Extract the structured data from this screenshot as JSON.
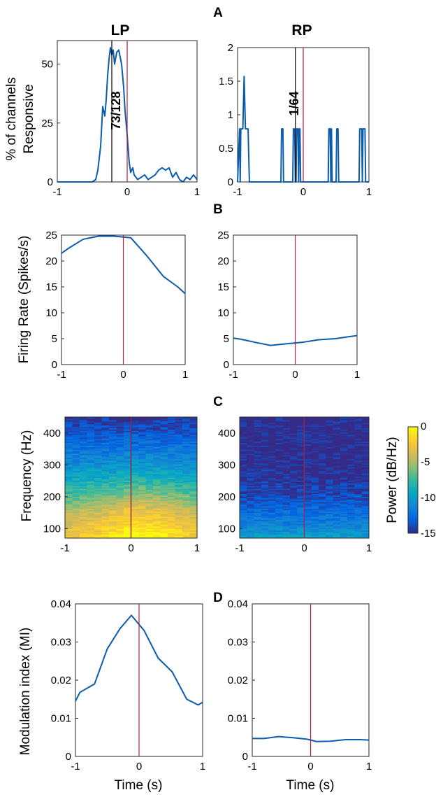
{
  "figure": {
    "column_titles": [
      "LP",
      "RP"
    ],
    "panel_letters": [
      "A",
      "B",
      "C",
      "D"
    ],
    "colorbar": {
      "label": "Power (dB/Hz)",
      "ticks": [
        "0",
        "-5",
        "-10",
        "-15"
      ],
      "range": [
        -15,
        0
      ]
    },
    "colors": {
      "line": "#0b5cad",
      "onset_line": "#b02040",
      "peak_line": "#000000"
    }
  },
  "chart_data": [
    {
      "id": "A-LP",
      "panel": "A",
      "type": "line",
      "ylabel": [
        "% of channels",
        "Responsive"
      ],
      "xlim": [
        -1,
        1
      ],
      "ylim": [
        0,
        60
      ],
      "xticks": [
        "-1",
        "0",
        "1"
      ],
      "yticks": [
        "0",
        "25",
        "50"
      ],
      "markers": {
        "red_x": 0.0,
        "black_x": -0.22
      },
      "annotation": "73/128",
      "x": [
        -1,
        -0.9,
        -0.8,
        -0.7,
        -0.6,
        -0.5,
        -0.45,
        -0.42,
        -0.38,
        -0.35,
        -0.32,
        -0.3,
        -0.28,
        -0.26,
        -0.24,
        -0.22,
        -0.2,
        -0.18,
        -0.15,
        -0.12,
        -0.1,
        -0.08,
        -0.05,
        -0.03,
        0,
        0.03,
        0.05,
        0.08,
        0.1,
        0.15,
        0.2,
        0.25,
        0.3,
        0.35,
        0.4,
        0.45,
        0.5,
        0.55,
        0.6,
        0.65,
        0.7,
        0.75,
        0.8,
        0.85,
        0.9,
        0.95,
        1
      ],
      "y": [
        0,
        0,
        0,
        0,
        0,
        0,
        1,
        5,
        15,
        32,
        28,
        35,
        45,
        52,
        57,
        54,
        56,
        50,
        55,
        56,
        53,
        50,
        40,
        30,
        20,
        8,
        4,
        6,
        3,
        1,
        2,
        3,
        1,
        2,
        3,
        5,
        6,
        5,
        6,
        2,
        4,
        1,
        0,
        2,
        1,
        3,
        1
      ]
    },
    {
      "id": "A-RP",
      "panel": "A",
      "type": "line",
      "xlim": [
        -1,
        1
      ],
      "ylim": [
        0,
        2
      ],
      "xticks": [
        "-1",
        "0",
        "1"
      ],
      "yticks": [
        "0",
        "0.5",
        "1",
        "1.5",
        "2"
      ],
      "markers": {
        "red_x": 0.0,
        "black_x": -0.12
      },
      "annotation": "1/64",
      "x": [
        -1,
        -0.97,
        -0.96,
        -0.95,
        -0.94,
        -0.92,
        -0.9,
        -0.88,
        -0.86,
        -0.84,
        -0.82,
        -0.8,
        -0.78,
        -0.34,
        -0.33,
        -0.32,
        -0.31,
        -0.3,
        -0.16,
        -0.15,
        -0.14,
        -0.13,
        -0.12,
        -0.11,
        -0.1,
        -0.09,
        -0.08,
        -0.07,
        -0.06,
        -0.05,
        -0.04,
        0.38,
        0.39,
        0.4,
        0.41,
        0.42,
        0.43,
        0.44,
        0.5,
        0.51,
        0.52,
        0.53,
        0.54,
        0.85,
        0.86,
        0.87,
        0.88,
        0.89,
        0.9,
        0.91,
        0.92,
        0.93,
        0.94,
        0.95,
        1
      ],
      "y": [
        0,
        0.79,
        0,
        0.79,
        0.79,
        0.79,
        1.57,
        0.79,
        0.79,
        0.79,
        0,
        0,
        0,
        0,
        0.79,
        0.79,
        0.79,
        0,
        0,
        0.79,
        0.79,
        0.79,
        0,
        0,
        0.79,
        0.79,
        0.79,
        0,
        0.79,
        0.79,
        0,
        0,
        0.79,
        0.79,
        0.79,
        0,
        0.79,
        0,
        0,
        0.79,
        0.79,
        0.79,
        0,
        0,
        0.79,
        0.79,
        0.79,
        0.79,
        0,
        0.79,
        0.79,
        0.79,
        0.79,
        0,
        0
      ]
    },
    {
      "id": "B-LP",
      "panel": "B",
      "type": "line",
      "ylabel": [
        "Firing Rate  (Spikes/s)"
      ],
      "xlim": [
        -1,
        1
      ],
      "ylim": [
        0,
        25
      ],
      "xticks": [
        "-1",
        "0",
        "1"
      ],
      "yticks": [
        "0",
        "5",
        "10",
        "15",
        "20",
        "25"
      ],
      "markers": {
        "red_x": 0.0
      },
      "x": [
        -1,
        -0.88,
        -0.65,
        -0.4,
        -0.15,
        0.12,
        0.38,
        0.65,
        0.88,
        1
      ],
      "y": [
        21.5,
        22.5,
        24.2,
        24.8,
        24.8,
        24.5,
        21,
        17,
        15,
        13.7
      ]
    },
    {
      "id": "B-RP",
      "panel": "B",
      "type": "line",
      "xlim": [
        -1,
        1
      ],
      "ylim": [
        0,
        25
      ],
      "xticks": [
        "-1",
        "0",
        "1"
      ],
      "yticks": [
        "0",
        "5",
        "10",
        "15",
        "20",
        "25"
      ],
      "markers": {
        "red_x": 0.0
      },
      "x": [
        -1,
        -0.88,
        -0.65,
        -0.4,
        -0.15,
        0.12,
        0.38,
        0.65,
        0.88,
        1
      ],
      "y": [
        5.1,
        4.9,
        4.3,
        3.7,
        4.0,
        4.3,
        4.8,
        5.0,
        5.4,
        5.6
      ]
    },
    {
      "id": "C-LP",
      "panel": "C",
      "type": "heatmap",
      "ylabel": [
        "Frequency (Hz)"
      ],
      "xlim": [
        -1,
        1
      ],
      "ylim": [
        70,
        450
      ],
      "xticks": [
        "-1",
        "0",
        "1"
      ],
      "yticks": [
        "100",
        "200",
        "300",
        "400"
      ],
      "markers": {
        "red_x": 0.0,
        "black_x": 0.0
      },
      "freq_profile_db": {
        "freq_hz": [
          70,
          100,
          150,
          200,
          250,
          300,
          350,
          400,
          450
        ],
        "power_db": [
          -1,
          -2,
          -3.5,
          -6,
          -8.5,
          -10.5,
          -12,
          -13.5,
          -14.5
        ]
      },
      "time_modulation_db": {
        "x": [
          -1,
          -0.5,
          0,
          0.5,
          1
        ],
        "boost": [
          -1.5,
          -0.5,
          1.5,
          0.8,
          -1
        ]
      }
    },
    {
      "id": "C-RP",
      "panel": "C",
      "type": "heatmap",
      "xlim": [
        -1,
        1
      ],
      "ylim": [
        70,
        450
      ],
      "xticks": [
        "-1",
        "0",
        "1"
      ],
      "yticks": [
        "100",
        "200",
        "300",
        "400"
      ],
      "markers": {
        "red_x": 0.0
      },
      "freq_profile_db": {
        "freq_hz": [
          70,
          100,
          150,
          200,
          250,
          300,
          450
        ],
        "power_db": [
          -9.5,
          -11,
          -12.5,
          -13.8,
          -14.6,
          -15,
          -15
        ]
      },
      "time_modulation_db": {
        "x": [
          -1,
          0,
          1
        ],
        "boost": [
          0,
          0,
          0
        ]
      }
    },
    {
      "id": "D-LP",
      "panel": "D",
      "type": "line",
      "ylabel": [
        "Modulation index (MI)"
      ],
      "xlabel": "Time (s)",
      "xlim": [
        -1,
        1
      ],
      "ylim": [
        0,
        0.04
      ],
      "xticks": [
        "-1",
        "0",
        "1"
      ],
      "yticks": [
        "0",
        "0.01",
        "0.02",
        "0.03",
        "0.04"
      ],
      "markers": {
        "red_x": 0.0
      },
      "x": [
        -1,
        -0.93,
        -0.7,
        -0.5,
        -0.3,
        -0.12,
        0.08,
        0.3,
        0.52,
        0.75,
        0.93,
        1
      ],
      "y": [
        0.0145,
        0.0168,
        0.019,
        0.0282,
        0.0335,
        0.037,
        0.033,
        0.0258,
        0.0222,
        0.015,
        0.0135,
        0.0142
      ]
    },
    {
      "id": "D-RP",
      "panel": "D",
      "type": "line",
      "xlabel": "Time (s)",
      "xlim": [
        -1,
        1
      ],
      "ylim": [
        0,
        0.04
      ],
      "xticks": [
        "-1",
        "0",
        "1"
      ],
      "yticks": [
        "0",
        "0.01",
        "0.02",
        "0.03",
        "0.04"
      ],
      "markers": {
        "red_x": 0.0
      },
      "x": [
        -1,
        -0.8,
        -0.55,
        -0.3,
        -0.05,
        0.1,
        0.35,
        0.6,
        0.85,
        1
      ],
      "y": [
        0.0047,
        0.0047,
        0.0052,
        0.0049,
        0.0045,
        0.0039,
        0.004,
        0.0044,
        0.0044,
        0.0043
      ]
    }
  ]
}
